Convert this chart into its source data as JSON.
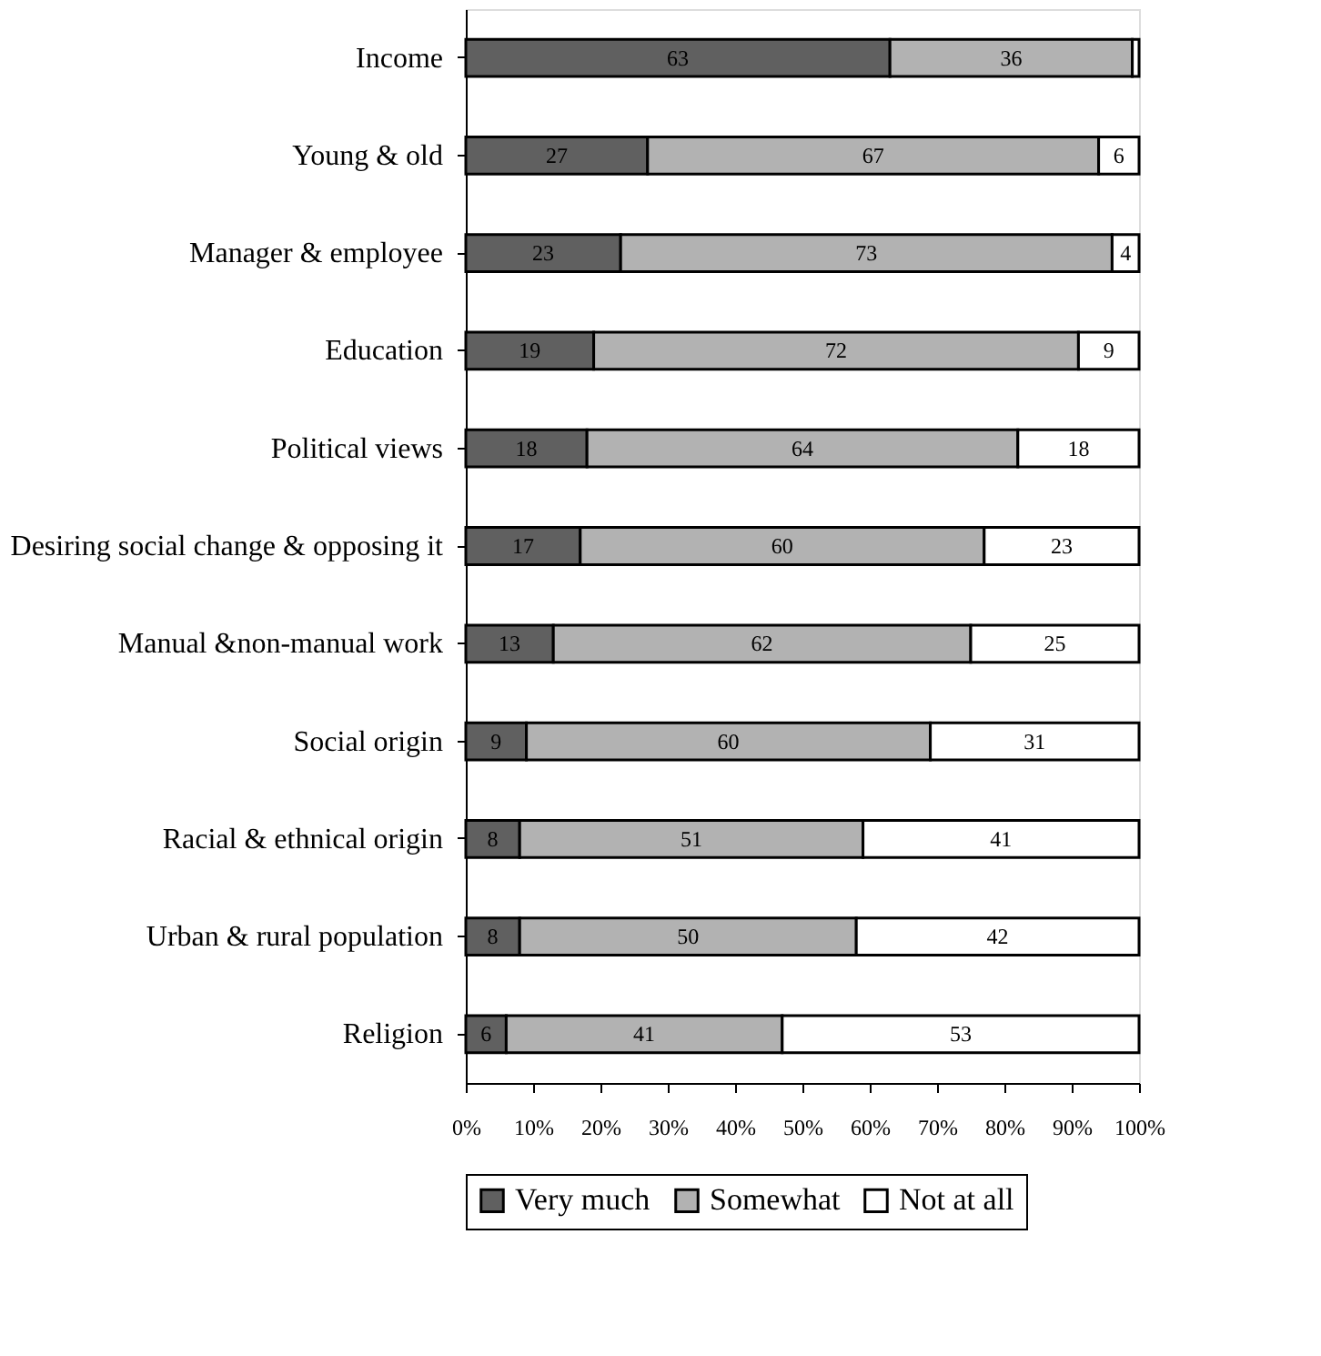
{
  "chart_data": {
    "type": "bar",
    "orientation": "horizontal",
    "stacked": true,
    "categories": [
      "Income",
      "Young & old",
      "Manager & employee",
      "Education",
      "Political views",
      "Desiring social change & opposing it",
      "Manual &non-manual work",
      "Social origin",
      "Racial & ethnical origin",
      "Urban & rural population",
      "Religion"
    ],
    "series": [
      {
        "name": "Very much",
        "color": "#606060",
        "values": [
          63,
          27,
          23,
          19,
          18,
          17,
          13,
          9,
          8,
          8,
          6
        ],
        "value_labels": [
          "63",
          "27",
          "23",
          "19",
          "18",
          "17",
          "13",
          "9",
          "8",
          "8",
          "6"
        ]
      },
      {
        "name": "Somewhat",
        "color": "#b2b2b2",
        "values": [
          36,
          67,
          73,
          72,
          64,
          60,
          62,
          60,
          51,
          50,
          41
        ],
        "value_labels": [
          "36",
          "67",
          "73",
          "72",
          "64",
          "60",
          "62",
          "60",
          "51",
          "50",
          "41"
        ]
      },
      {
        "name": "Not at all",
        "color": "#ffffff",
        "values": [
          1,
          6,
          4,
          9,
          18,
          23,
          25,
          31,
          41,
          42,
          53
        ],
        "value_labels": [
          null,
          "6",
          "4",
          "9",
          "18",
          "23",
          "25",
          "31",
          "41",
          "42",
          "53"
        ]
      }
    ],
    "xlim": [
      0,
      100
    ],
    "xticks": [
      {
        "value": 0,
        "label": "0%"
      },
      {
        "value": 10,
        "label": "10%"
      },
      {
        "value": 20,
        "label": "20%"
      },
      {
        "value": 30,
        "label": "30%"
      },
      {
        "value": 40,
        "label": "40%"
      },
      {
        "value": 50,
        "label": "50%"
      },
      {
        "value": 60,
        "label": "60%"
      },
      {
        "value": 70,
        "label": "70%"
      },
      {
        "value": 80,
        "label": "80%"
      },
      {
        "value": 90,
        "label": "90%"
      },
      {
        "value": 100,
        "label": "100%"
      }
    ],
    "grid": false,
    "legend": "bottom"
  }
}
